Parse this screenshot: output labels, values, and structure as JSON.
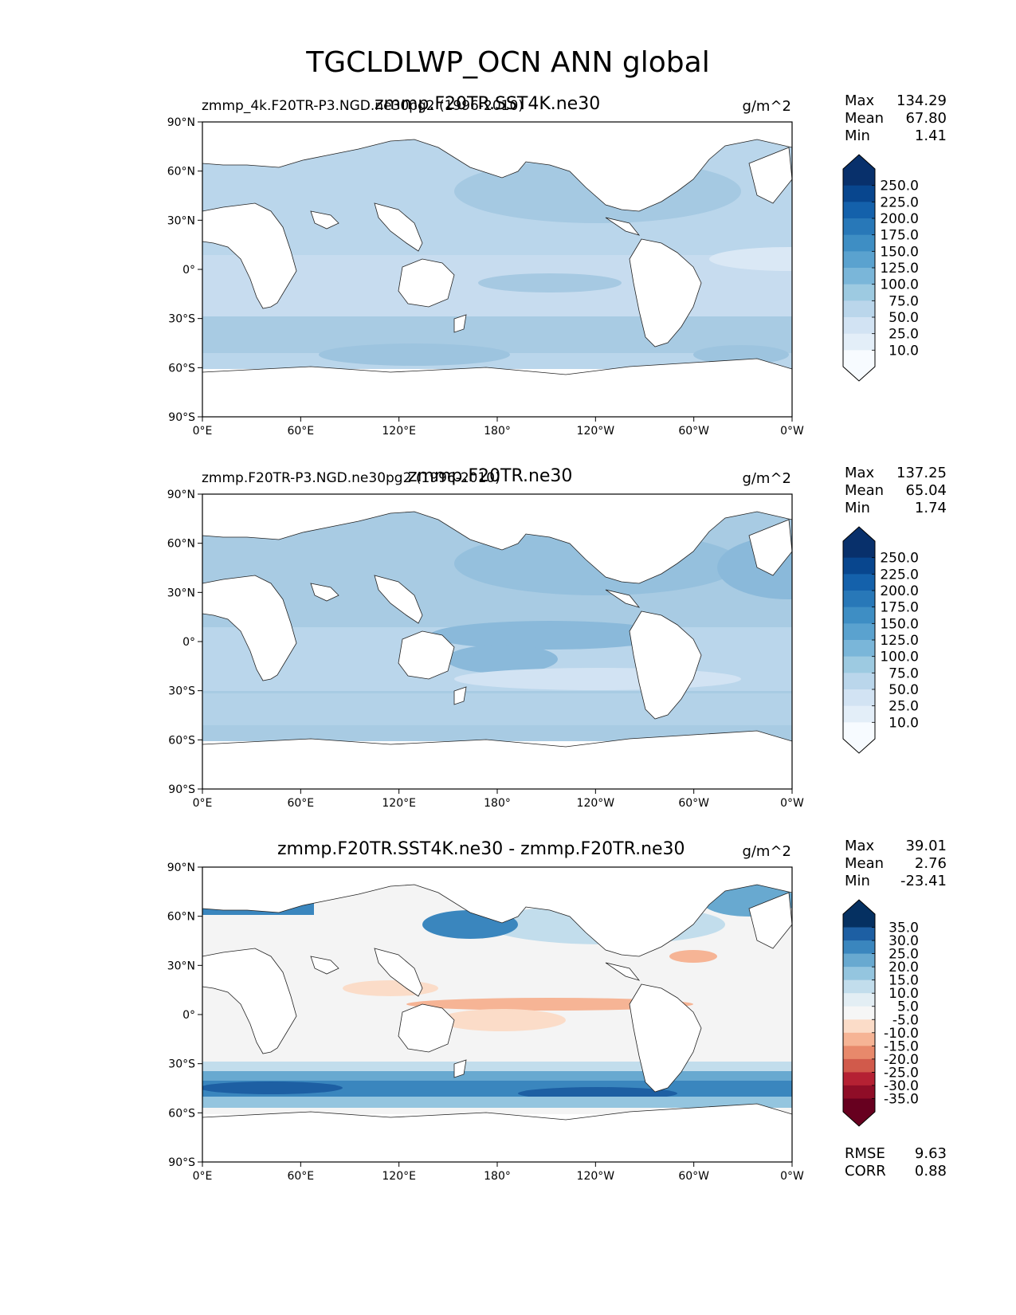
{
  "title": "TGCLDLWP_OCN ANN global",
  "units": "g/m^2",
  "axes": {
    "lat_ticks": [
      "90°N",
      "60°N",
      "30°N",
      "0°",
      "30°S",
      "60°S",
      "90°S"
    ],
    "lon_ticks": [
      "0°E",
      "60°E",
      "120°E",
      "180°",
      "120°W",
      "60°W",
      "0°W"
    ]
  },
  "panels": [
    {
      "title_left": "zmmp_4k.F20TR-P3.NGD.ne30pg2 (1996-2010)",
      "title_center": "zmmp.F20TR.SST4K.ne30",
      "stats": [
        {
          "label": "Max",
          "value": "134.29"
        },
        {
          "label": "Mean",
          "value": "67.80"
        },
        {
          "label": "Min",
          "value": "1.41"
        }
      ],
      "colorbar": {
        "levels": [
          "250.0",
          "225.0",
          "200.0",
          "175.0",
          "150.0",
          "125.0",
          "100.0",
          "75.0",
          "50.0",
          "25.0",
          "10.0"
        ],
        "colors": [
          "#08306b",
          "#08468e",
          "#1461ab",
          "#2878b8",
          "#3e8ec4",
          "#5aa2cf",
          "#7ab6d9",
          "#9dcae1",
          "#bad6eb",
          "#d2e3f3",
          "#e3eef8",
          "#f7fbff"
        ]
      }
    },
    {
      "title_left": "zmmp.F20TR-P3.NGD.ne30pg2 (1996-2010)",
      "title_center": "zmmp.F20TR.ne30",
      "stats": [
        {
          "label": "Max",
          "value": "137.25"
        },
        {
          "label": "Mean",
          "value": "65.04"
        },
        {
          "label": "Min",
          "value": "1.74"
        }
      ],
      "colorbar": {
        "levels": [
          "250.0",
          "225.0",
          "200.0",
          "175.0",
          "150.0",
          "125.0",
          "100.0",
          "75.0",
          "50.0",
          "25.0",
          "10.0"
        ],
        "colors": [
          "#08306b",
          "#08468e",
          "#1461ab",
          "#2878b8",
          "#3e8ec4",
          "#5aa2cf",
          "#7ab6d9",
          "#9dcae1",
          "#bad6eb",
          "#d2e3f3",
          "#e3eef8",
          "#f7fbff"
        ]
      }
    },
    {
      "title_center": "zmmp.F20TR.SST4K.ne30 - zmmp.F20TR.ne30",
      "stats": [
        {
          "label": "Max",
          "value": "39.01"
        },
        {
          "label": "Mean",
          "value": "2.76"
        },
        {
          "label": "Min",
          "value": "-23.41"
        }
      ],
      "metrics": [
        {
          "label": "RMSE",
          "value": "9.63"
        },
        {
          "label": "CORR",
          "value": "0.88"
        }
      ],
      "colorbar": {
        "levels": [
          "35.0",
          "30.0",
          "25.0",
          "20.0",
          "15.0",
          "10.0",
          "5.0",
          "-5.0",
          "-10.0",
          "-15.0",
          "-20.0",
          "-25.0",
          "-30.0",
          "-35.0"
        ],
        "colors": [
          "#053061",
          "#1d5fa3",
          "#3a86be",
          "#68a9d0",
          "#94c5df",
          "#c2ddec",
          "#e3eef4",
          "#f6f6f6",
          "#fbdcc8",
          "#f6b495",
          "#e8896b",
          "#d15a4b",
          "#b52133",
          "#8f0d27",
          "#67001f"
        ]
      }
    }
  ]
}
